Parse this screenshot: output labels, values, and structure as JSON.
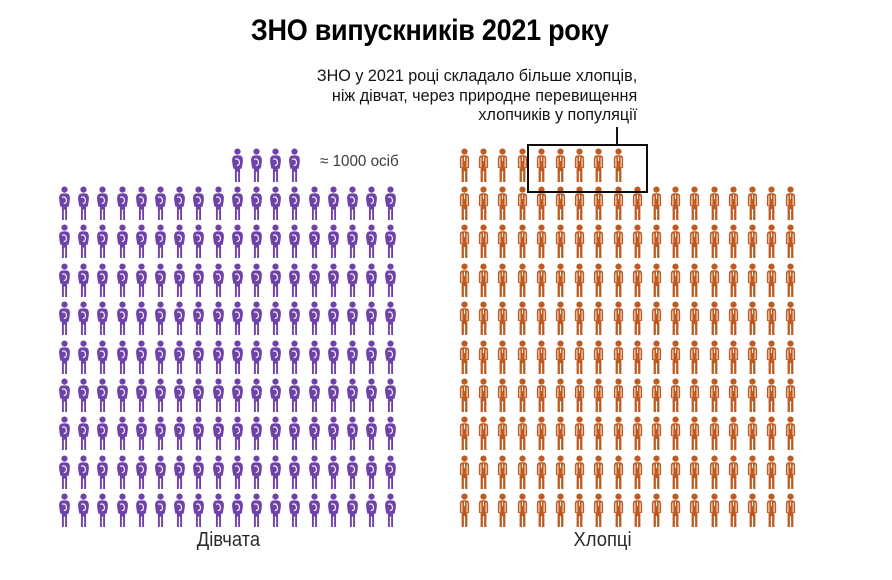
{
  "title": "ЗНО випускників 2021 року",
  "annotation": {
    "lines": [
      "ЗНО у 2021 році складало більше хлопців,",
      "ніж дівчат, через природне перевищення",
      "хлопчиків у популяції"
    ]
  },
  "legend": {
    "label": "≈ 1000 осіб"
  },
  "chart_data": {
    "type": "pictogram",
    "title": "ЗНО випускників 2021 року",
    "unit_value_per_icon": 1000,
    "unit_label": "осіб",
    "columns_per_full_row": 18,
    "highlight_color": "#0d0d0d",
    "groups": [
      {
        "name": "Дівчата",
        "icon": "female",
        "color": "#6E42A8",
        "icon_count": 166,
        "full_rows": 9,
        "partial_row_icons": 4,
        "partial_row_start_col": 10,
        "approx_value": "≈ 166 000 осіб"
      },
      {
        "name": "Хлопці",
        "icon": "male",
        "color": "#BF5B21",
        "icon_count": 171,
        "full_rows": 9,
        "partial_row_icons": 9,
        "partial_row_start_col": 1,
        "highlight_last_icons": 5,
        "approx_value": "≈ 171 000 осіб"
      }
    ],
    "highlight_meaning": "5 зайвих іконок хлопців (різниця між 171 та 166)"
  }
}
